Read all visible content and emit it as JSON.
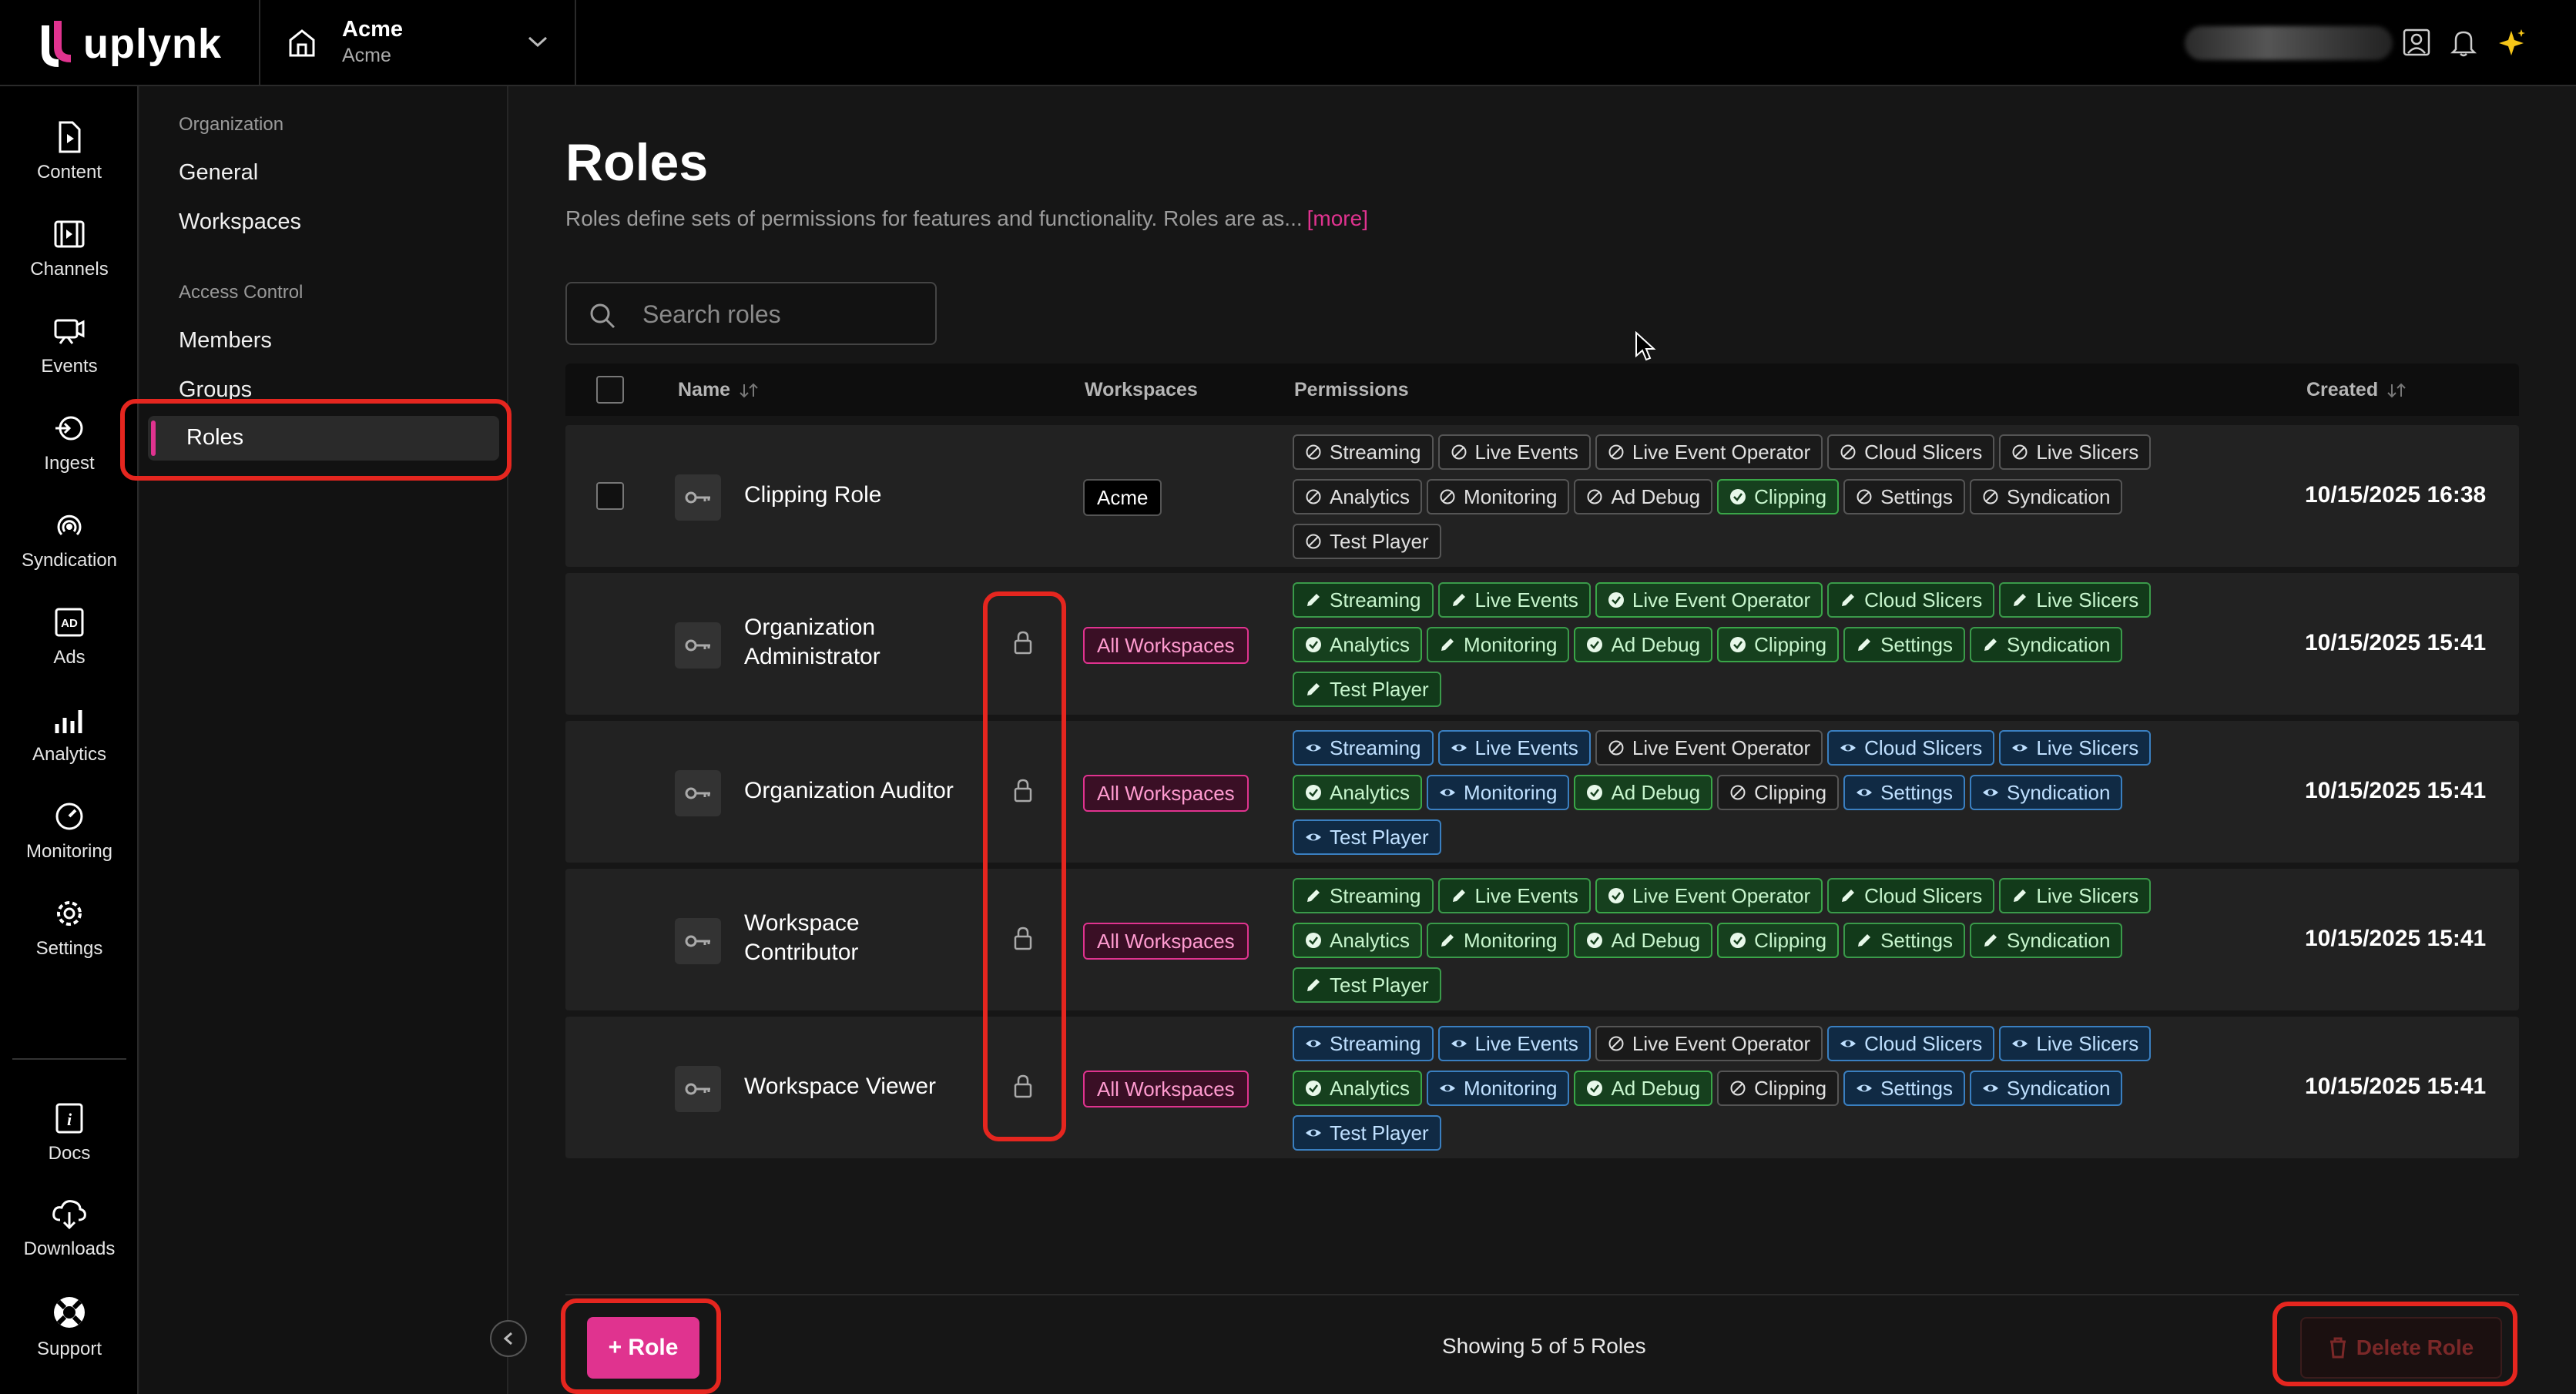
{
  "brand": {
    "logo_text": "uplynk",
    "accent": "#e0338f"
  },
  "org_switcher": {
    "name": "Acme",
    "sub": "Acme"
  },
  "left_nav": [
    {
      "label": "Content",
      "icon": "content-file-icon"
    },
    {
      "label": "Channels",
      "icon": "channels-icon"
    },
    {
      "label": "Events",
      "icon": "events-icon"
    },
    {
      "label": "Ingest",
      "icon": "ingest-icon"
    },
    {
      "label": "Syndication",
      "icon": "syndication-icon"
    },
    {
      "label": "Ads",
      "icon": "ads-icon"
    },
    {
      "label": "Analytics",
      "icon": "analytics-icon"
    },
    {
      "label": "Monitoring",
      "icon": "monitoring-icon"
    },
    {
      "label": "Settings",
      "icon": "gear-icon"
    },
    {
      "label": "Docs",
      "icon": "docs-icon"
    },
    {
      "label": "Downloads",
      "icon": "cloud-download-icon"
    },
    {
      "label": "Support",
      "icon": "lifebuoy-icon"
    }
  ],
  "sub_nav": {
    "org_section": "Organization",
    "general": "General",
    "workspaces": "Workspaces",
    "access_section": "Access Control",
    "members": "Members",
    "groups": "Groups",
    "roles": "Roles"
  },
  "page": {
    "title": "Roles",
    "description": "Roles define sets of permissions for features and functionality. Roles are as...",
    "more_link": "[more]"
  },
  "search": {
    "placeholder": "Search roles"
  },
  "table": {
    "columns": {
      "name": "Name",
      "workspaces": "Workspaces",
      "permissions": "Permissions",
      "created": "Created"
    },
    "rows": [
      {
        "name": "Clipping Role",
        "workspace": "Acme",
        "locked": false,
        "created": "10/15/2025 16:38",
        "permissions": [
          {
            "label": "Streaming",
            "level": "none"
          },
          {
            "label": "Live Events",
            "level": "none"
          },
          {
            "label": "Live Event Operator",
            "level": "none"
          },
          {
            "label": "Cloud Slicers",
            "level": "none"
          },
          {
            "label": "Live Slicers",
            "level": "none"
          },
          {
            "label": "Analytics",
            "level": "none"
          },
          {
            "label": "Monitoring",
            "level": "none"
          },
          {
            "label": "Ad Debug",
            "level": "none"
          },
          {
            "label": "Clipping",
            "level": "full"
          },
          {
            "label": "Settings",
            "level": "none"
          },
          {
            "label": "Syndication",
            "level": "none"
          },
          {
            "label": "Test Player",
            "level": "none"
          }
        ]
      },
      {
        "name": "Organization Administrator",
        "workspace": "All Workspaces",
        "locked": true,
        "created": "10/15/2025 15:41",
        "permissions": [
          {
            "label": "Streaming",
            "level": "edit"
          },
          {
            "label": "Live Events",
            "level": "edit"
          },
          {
            "label": "Live Event Operator",
            "level": "full"
          },
          {
            "label": "Cloud Slicers",
            "level": "edit"
          },
          {
            "label": "Live Slicers",
            "level": "edit"
          },
          {
            "label": "Analytics",
            "level": "full"
          },
          {
            "label": "Monitoring",
            "level": "edit"
          },
          {
            "label": "Ad Debug",
            "level": "full"
          },
          {
            "label": "Clipping",
            "level": "full"
          },
          {
            "label": "Settings",
            "level": "edit"
          },
          {
            "label": "Syndication",
            "level": "edit"
          },
          {
            "label": "Test Player",
            "level": "edit"
          }
        ]
      },
      {
        "name": "Organization Auditor",
        "workspace": "All Workspaces",
        "locked": true,
        "created": "10/15/2025 15:41",
        "permissions": [
          {
            "label": "Streaming",
            "level": "view"
          },
          {
            "label": "Live Events",
            "level": "view"
          },
          {
            "label": "Live Event Operator",
            "level": "none"
          },
          {
            "label": "Cloud Slicers",
            "level": "view"
          },
          {
            "label": "Live Slicers",
            "level": "view"
          },
          {
            "label": "Analytics",
            "level": "full"
          },
          {
            "label": "Monitoring",
            "level": "view"
          },
          {
            "label": "Ad Debug",
            "level": "full"
          },
          {
            "label": "Clipping",
            "level": "none"
          },
          {
            "label": "Settings",
            "level": "view"
          },
          {
            "label": "Syndication",
            "level": "view"
          },
          {
            "label": "Test Player",
            "level": "view"
          }
        ]
      },
      {
        "name": "Workspace Contributor",
        "workspace": "All Workspaces",
        "locked": true,
        "created": "10/15/2025 15:41",
        "permissions": [
          {
            "label": "Streaming",
            "level": "edit"
          },
          {
            "label": "Live Events",
            "level": "edit"
          },
          {
            "label": "Live Event Operator",
            "level": "full"
          },
          {
            "label": "Cloud Slicers",
            "level": "edit"
          },
          {
            "label": "Live Slicers",
            "level": "edit"
          },
          {
            "label": "Analytics",
            "level": "full"
          },
          {
            "label": "Monitoring",
            "level": "edit"
          },
          {
            "label": "Ad Debug",
            "level": "full"
          },
          {
            "label": "Clipping",
            "level": "full"
          },
          {
            "label": "Settings",
            "level": "edit"
          },
          {
            "label": "Syndication",
            "level": "edit"
          },
          {
            "label": "Test Player",
            "level": "edit"
          }
        ]
      },
      {
        "name": "Workspace Viewer",
        "workspace": "All Workspaces",
        "locked": true,
        "created": "10/15/2025 15:41",
        "permissions": [
          {
            "label": "Streaming",
            "level": "view"
          },
          {
            "label": "Live Events",
            "level": "view"
          },
          {
            "label": "Live Event Operator",
            "level": "none"
          },
          {
            "label": "Cloud Slicers",
            "level": "view"
          },
          {
            "label": "Live Slicers",
            "level": "view"
          },
          {
            "label": "Analytics",
            "level": "full"
          },
          {
            "label": "Monitoring",
            "level": "view"
          },
          {
            "label": "Ad Debug",
            "level": "full"
          },
          {
            "label": "Clipping",
            "level": "none"
          },
          {
            "label": "Settings",
            "level": "view"
          },
          {
            "label": "Syndication",
            "level": "view"
          },
          {
            "label": "Test Player",
            "level": "view"
          }
        ]
      }
    ]
  },
  "footer": {
    "add_role": "+ Role",
    "showing": "Showing 5 of 5 Roles",
    "delete_role": "Delete Role"
  }
}
